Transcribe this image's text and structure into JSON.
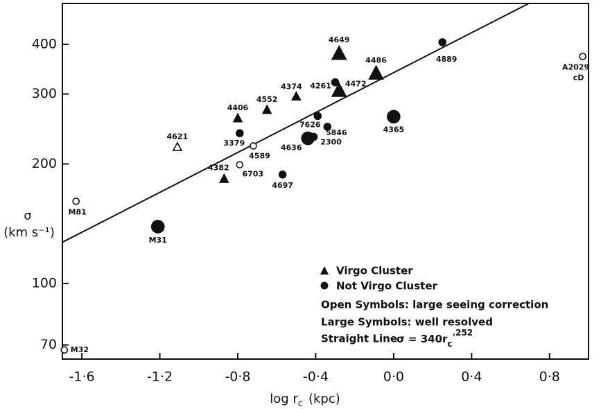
{
  "chart_data": {
    "type": "scatter",
    "xlabel": "log r",
    "xlabel_subscript": "c",
    "xlabel_unit": "(kpc)",
    "ylabel": "σ",
    "ylabel_unit": "(km s⁻¹)",
    "xlim": [
      -1.7,
      1.0
    ],
    "ylim": [
      64.5,
      507
    ],
    "log_y": true,
    "xticks": [
      {
        "value": -1.6,
        "label": "-1·6"
      },
      {
        "value": -1.2,
        "label": "-1·2"
      },
      {
        "value": -0.8,
        "label": "-0·8"
      },
      {
        "value": -0.4,
        "label": "-0·4"
      },
      {
        "value": 0.0,
        "label": "0·0"
      },
      {
        "value": 0.4,
        "label": "0·4"
      },
      {
        "value": 0.8,
        "label": "0·8"
      }
    ],
    "yticks": [
      70,
      100,
      200,
      300,
      400
    ],
    "color": "#111111",
    "points": [
      {
        "label": "M32",
        "x": -1.69,
        "value": 68,
        "marker": "circle",
        "open": true,
        "large": false
      },
      {
        "label": "M81",
        "x": -1.63,
        "value": 161,
        "marker": "circle",
        "open": true,
        "large": false
      },
      {
        "label": "M31",
        "x": -1.21,
        "value": 139,
        "marker": "circle",
        "open": false,
        "large": true
      },
      {
        "label": "4621",
        "x": -1.11,
        "value": 220,
        "marker": "triangle",
        "open": true,
        "large": false
      },
      {
        "label": "4382",
        "x": -0.87,
        "value": 183,
        "marker": "triangle",
        "open": false,
        "large": false
      },
      {
        "label": "6703",
        "x": -0.79,
        "value": 199,
        "marker": "circle",
        "open": true,
        "large": false
      },
      {
        "label": "4589",
        "x": -0.72,
        "value": 222,
        "marker": "circle",
        "open": true,
        "large": false
      },
      {
        "label": "3379",
        "x": -0.79,
        "value": 239,
        "marker": "circle",
        "open": false,
        "large": false
      },
      {
        "label": "4406",
        "x": -0.8,
        "value": 260,
        "marker": "triangle",
        "open": false,
        "large": false
      },
      {
        "label": "4552",
        "x": -0.65,
        "value": 273,
        "marker": "triangle",
        "open": false,
        "large": false
      },
      {
        "label": "4374",
        "x": -0.5,
        "value": 295,
        "marker": "triangle",
        "open": false,
        "large": false
      },
      {
        "label": "4697",
        "x": -0.57,
        "value": 188,
        "marker": "circle",
        "open": false,
        "large": false
      },
      {
        "label": "4636",
        "x": -0.44,
        "value": 232,
        "marker": "circle",
        "open": false,
        "large": true
      },
      {
        "label": "2300",
        "x": -0.41,
        "value": 234,
        "marker": "circle",
        "open": false,
        "large": false
      },
      {
        "label": "7626",
        "x": -0.39,
        "value": 264,
        "marker": "circle",
        "open": false,
        "large": false
      },
      {
        "label": "5846",
        "x": -0.34,
        "value": 248,
        "marker": "circle",
        "open": false,
        "large": false
      },
      {
        "label": "4261",
        "x": -0.3,
        "value": 321,
        "marker": "circle",
        "open": false,
        "large": false
      },
      {
        "label": "4472",
        "x": -0.28,
        "value": 305,
        "marker": "triangle",
        "open": false,
        "large": true
      },
      {
        "label": "4649",
        "x": -0.28,
        "value": 378,
        "marker": "triangle",
        "open": false,
        "large": true
      },
      {
        "label": "4486",
        "x": -0.09,
        "value": 337,
        "marker": "triangle",
        "open": false,
        "large": true
      },
      {
        "label": "4365",
        "x": 0.0,
        "value": 263,
        "marker": "circle",
        "open": false,
        "large": true
      },
      {
        "label": "4889",
        "x": 0.25,
        "value": 405,
        "marker": "circle",
        "open": false,
        "large": false
      },
      {
        "label": "A2029",
        "sublabel": "cD",
        "x": 0.97,
        "value": 373,
        "marker": "circle",
        "open": true,
        "large": false
      }
    ],
    "fit_line": {
      "x": [
        -1.7,
        0.69
      ],
      "values": [
        127,
        506
      ]
    },
    "legend": {
      "virgo": "Virgo Cluster",
      "not_virgo": "Not Virgo Cluster",
      "open_note": "Open Symbols: large seeing correction",
      "large_note": "Large Symbols: well resolved",
      "line_note": "Straight Line",
      "equation": "σ = 340r",
      "equation_subscript": "c",
      "equation_superscript": ".252"
    }
  }
}
